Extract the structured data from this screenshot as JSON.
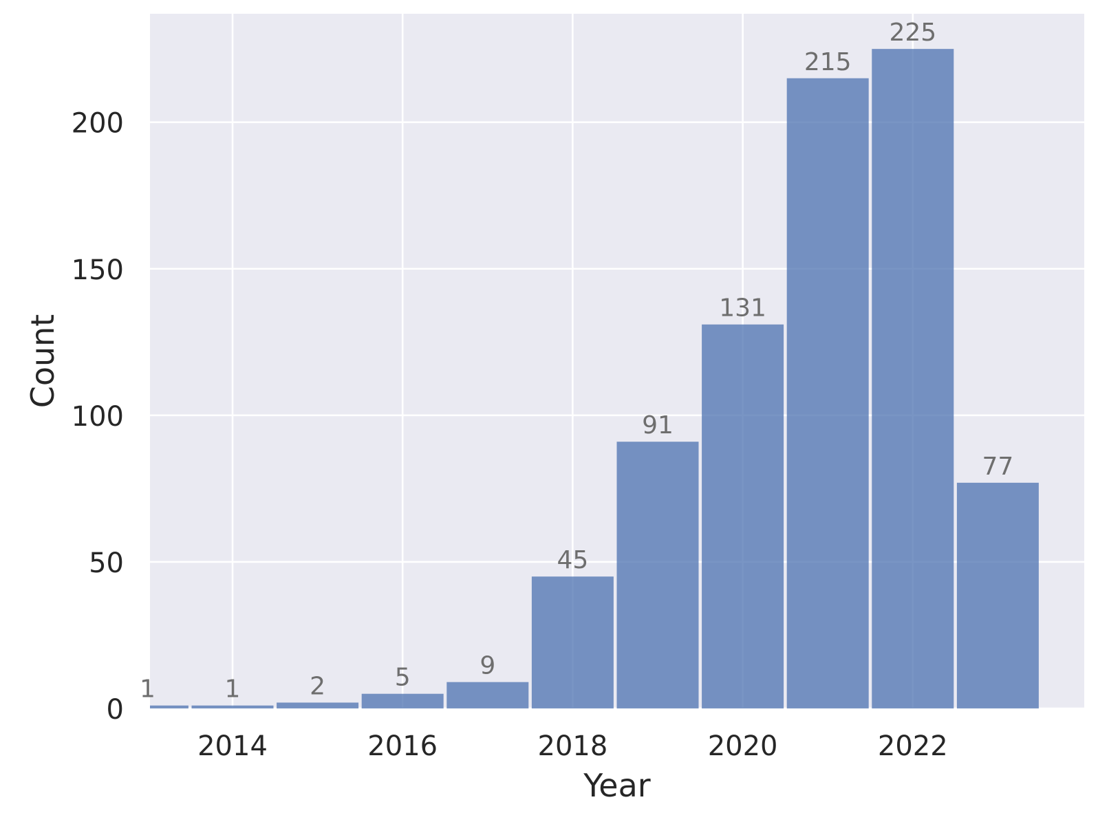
{
  "chart_data": {
    "type": "bar",
    "subtype": "histogram",
    "title": "",
    "xlabel": "Year",
    "ylabel": "Count",
    "categories": [
      2013,
      2014,
      2015,
      2016,
      2017,
      2018,
      2019,
      2020,
      2021,
      2022,
      2023
    ],
    "values": [
      1,
      1,
      2,
      5,
      9,
      45,
      91,
      131,
      215,
      225,
      77
    ],
    "bar_labels": [
      "1",
      "1",
      "2",
      "5",
      "9",
      "45",
      "91",
      "131",
      "215",
      "225",
      "77"
    ],
    "x_ticks": [
      2014,
      2016,
      2018,
      2020,
      2022
    ],
    "x_tick_labels": [
      "2014",
      "2016",
      "2018",
      "2020",
      "2022"
    ],
    "y_ticks": [
      0,
      50,
      100,
      150,
      200
    ],
    "y_tick_labels": [
      "0",
      "50",
      "100",
      "150",
      "200"
    ],
    "ylim": [
      0,
      237
    ],
    "grid": true,
    "legend": "none",
    "colors": {
      "figure_background": "#FFFFFF",
      "plot_background": "#EAEAF2",
      "gridline": "#FFFFFF",
      "bar_fill": "#4C72B0",
      "bar_opacity": 0.75,
      "value_label": "#6E6E6E",
      "tick_label": "#262626",
      "axis_label": "#262626"
    }
  }
}
